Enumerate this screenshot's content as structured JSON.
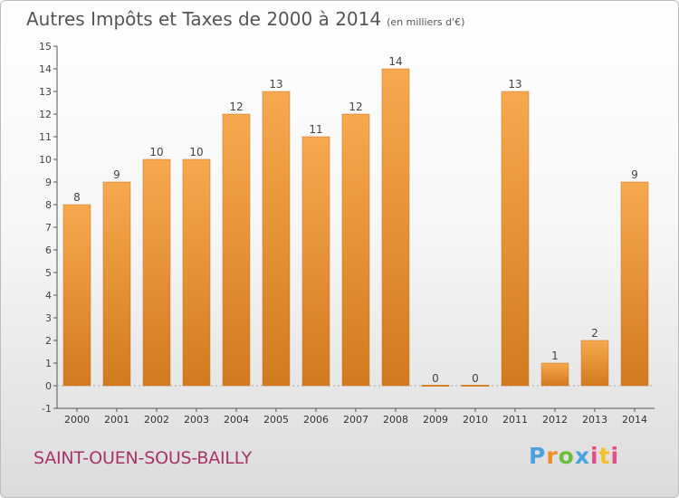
{
  "header": {
    "title": "Autres Impôts et Taxes de 2000 à 2014",
    "subtitle": "(en milliers d'€)"
  },
  "footer": {
    "commune": "SAINT-OUEN-SOUS-BAILLY",
    "logo_letters": [
      "P",
      "r",
      "o",
      "x",
      "i",
      "t",
      "i"
    ]
  },
  "colors": {
    "bar_top": "#f7a94f",
    "bar_bottom": "#d27a1f",
    "axis": "#555555",
    "gridline": "#aaaaaa"
  },
  "chart_data": {
    "type": "bar",
    "title": "Autres Impôts et Taxes de 2000 à 2014",
    "subtitle": "(en milliers d'€)",
    "xlabel": "",
    "ylabel": "",
    "categories": [
      "2000",
      "2001",
      "2002",
      "2003",
      "2004",
      "2005",
      "2006",
      "2007",
      "2008",
      "2009",
      "2010",
      "2011",
      "2012",
      "2013",
      "2014"
    ],
    "values": [
      8,
      9,
      10,
      10,
      12,
      13,
      11,
      12,
      14,
      0,
      0,
      13,
      1,
      2,
      9
    ],
    "data_labels": [
      "8",
      "9",
      "10",
      "10",
      "12",
      "13",
      "11",
      "12",
      "14",
      "0",
      "0",
      "13",
      "1",
      "2",
      "9"
    ],
    "y_ticks": [
      "-1",
      "0",
      "1",
      "2",
      "3",
      "4",
      "5",
      "6",
      "7",
      "8",
      "9",
      "10",
      "11",
      "12",
      "13",
      "14",
      "15"
    ],
    "ylim": [
      -1,
      15
    ],
    "grid": false,
    "legend": "none"
  }
}
